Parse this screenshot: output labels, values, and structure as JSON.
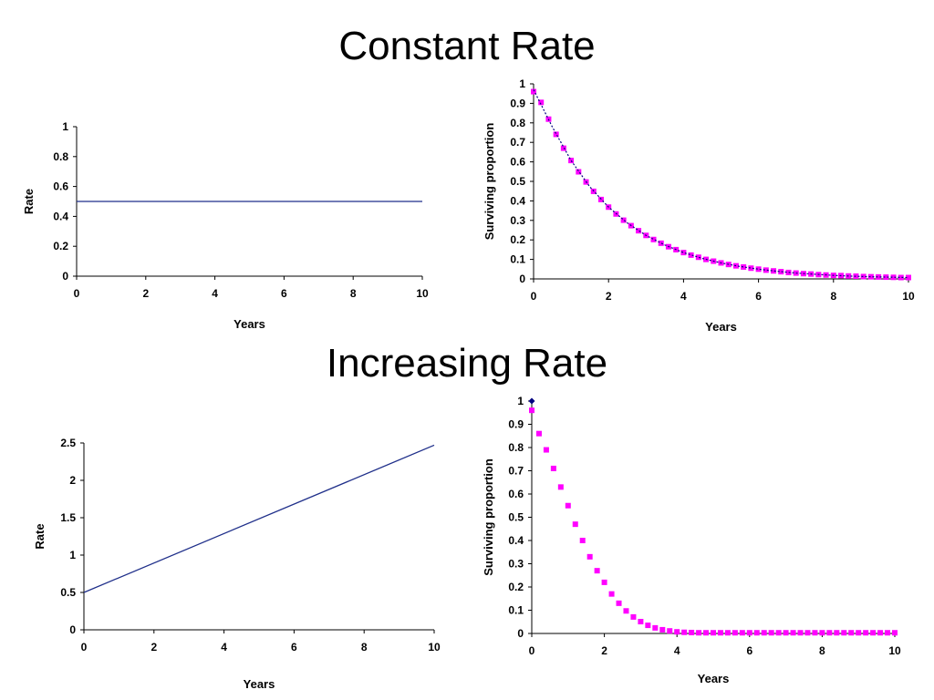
{
  "sections": {
    "constant_title": "Constant Rate",
    "increasing_title": "Increasing Rate"
  },
  "colors": {
    "rate_line": "#1f2f8a",
    "survival_markers": "#ff00ff",
    "survival_exact": "#000080",
    "axis": "#000000"
  },
  "chart_data": [
    {
      "id": "constant-rate",
      "type": "line",
      "title": "",
      "xlabel": "Years",
      "ylabel": "Rate",
      "xlim": [
        0,
        10
      ],
      "ylim": [
        0,
        1
      ],
      "x_ticks": [
        "0",
        "2",
        "4",
        "6",
        "8",
        "10"
      ],
      "y_ticks": [
        "0",
        "0.2",
        "0.4",
        "0.6",
        "0.8",
        "1"
      ],
      "series": [
        {
          "x": [
            0,
            10
          ],
          "y": [
            0.5,
            0.5
          ]
        }
      ]
    },
    {
      "id": "constant-survival",
      "type": "scatter",
      "title": "",
      "xlabel": "Years",
      "ylabel": "Surviving proportion",
      "xlim": [
        0,
        10
      ],
      "ylim": [
        0,
        1
      ],
      "x_ticks": [
        "0",
        "2",
        "4",
        "6",
        "8",
        "10"
      ],
      "y_ticks": [
        "0",
        "0.1",
        "0.2",
        "0.3",
        "0.4",
        "0.5",
        "0.6",
        "0.7",
        "0.8",
        "0.9",
        "1"
      ],
      "series": [
        {
          "marker": "square",
          "x": [
            0,
            0.2,
            0.4,
            0.6,
            0.8,
            1,
            1.2,
            1.4,
            1.6,
            1.8,
            2,
            2.2,
            2.4,
            2.6,
            2.8,
            3,
            3.2,
            3.4,
            3.6,
            3.8,
            4,
            4.2,
            4.4,
            4.6,
            4.8,
            5,
            5.2,
            5.4,
            5.6,
            5.8,
            6,
            6.2,
            6.4,
            6.6,
            6.8,
            7,
            7.2,
            7.4,
            7.6,
            7.8,
            8,
            8.2,
            8.4,
            8.6,
            8.8,
            9,
            9.2,
            9.4,
            9.6,
            9.8,
            10
          ],
          "y": [
            0.96,
            0.905,
            0.819,
            0.741,
            0.67,
            0.607,
            0.549,
            0.497,
            0.449,
            0.407,
            0.368,
            0.333,
            0.301,
            0.273,
            0.247,
            0.223,
            0.202,
            0.183,
            0.165,
            0.15,
            0.135,
            0.122,
            0.111,
            0.1,
            0.091,
            0.082,
            0.074,
            0.067,
            0.061,
            0.055,
            0.05,
            0.045,
            0.041,
            0.037,
            0.033,
            0.03,
            0.027,
            0.025,
            0.022,
            0.02,
            0.018,
            0.017,
            0.015,
            0.014,
            0.012,
            0.011,
            0.01,
            0.009,
            0.008,
            0.007,
            0.007
          ]
        },
        {
          "marker": "diamond-line",
          "x": [
            0,
            0.5,
            1,
            1.5,
            2,
            2.5,
            3,
            3.5,
            4,
            4.5,
            5,
            5.5,
            6,
            6.5,
            7,
            7.5,
            8,
            8.5,
            9,
            9.5,
            10
          ],
          "y": [
            0.97,
            0.779,
            0.607,
            0.472,
            0.368,
            0.287,
            0.223,
            0.174,
            0.135,
            0.105,
            0.082,
            0.064,
            0.05,
            0.039,
            0.03,
            0.024,
            0.018,
            0.014,
            0.011,
            0.009,
            0.007
          ]
        }
      ]
    },
    {
      "id": "increasing-rate",
      "type": "line",
      "title": "",
      "xlabel": "Years",
      "ylabel": "Rate",
      "xlim": [
        0,
        10
      ],
      "ylim": [
        0,
        2.5
      ],
      "x_ticks": [
        "0",
        "2",
        "4",
        "6",
        "8",
        "10"
      ],
      "y_ticks": [
        "0",
        "0.5",
        "1",
        "1.5",
        "2",
        "2.5"
      ],
      "series": [
        {
          "x": [
            0,
            10
          ],
          "y": [
            0.5,
            2.47
          ]
        }
      ]
    },
    {
      "id": "increasing-survival",
      "type": "scatter",
      "title": "",
      "xlabel": "Years",
      "ylabel": "Surviving proportion",
      "xlim": [
        0,
        10
      ],
      "ylim": [
        0,
        1
      ],
      "x_ticks": [
        "0",
        "2",
        "4",
        "6",
        "8",
        "10"
      ],
      "y_ticks": [
        "0",
        "0.1",
        "0.2",
        "0.3",
        "0.4",
        "0.5",
        "0.6",
        "0.7",
        "0.8",
        "0.9",
        "1"
      ],
      "series": [
        {
          "marker": "square",
          "x": [
            0,
            0.2,
            0.4,
            0.6,
            0.8,
            1,
            1.2,
            1.4,
            1.6,
            1.8,
            2,
            2.2,
            2.4,
            2.6,
            2.8,
            3,
            3.2,
            3.4,
            3.6,
            3.8,
            4,
            4.2,
            4.4,
            4.6,
            4.8,
            5,
            5.2,
            5.4,
            5.6,
            5.8,
            6,
            6.2,
            6.4,
            6.6,
            6.8,
            7,
            7.2,
            7.4,
            7.6,
            7.8,
            8,
            8.2,
            8.4,
            8.6,
            8.8,
            9,
            9.2,
            9.4,
            9.6,
            9.8,
            10
          ],
          "y": [
            0.96,
            0.86,
            0.79,
            0.71,
            0.63,
            0.55,
            0.47,
            0.4,
            0.33,
            0.27,
            0.22,
            0.17,
            0.13,
            0.097,
            0.071,
            0.051,
            0.035,
            0.024,
            0.016,
            0.011,
            0.007,
            0.005,
            0.004,
            0.003,
            0.003,
            0.003,
            0.003,
            0.003,
            0.003,
            0.003,
            0.003,
            0.003,
            0.003,
            0.003,
            0.003,
            0.003,
            0.003,
            0.003,
            0.003,
            0.003,
            0.003,
            0.003,
            0.003,
            0.003,
            0.003,
            0.003,
            0.003,
            0.003,
            0.003,
            0.003,
            0.003
          ]
        },
        {
          "marker": "diamond",
          "x": [
            0
          ],
          "y": [
            1
          ]
        }
      ]
    }
  ]
}
